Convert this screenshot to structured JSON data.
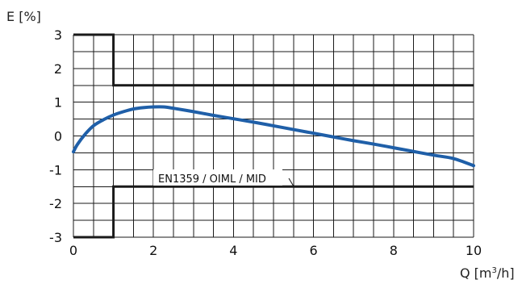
{
  "chart_data": {
    "type": "line",
    "ylabel": "E [%]",
    "xlabel_main": "Q [m",
    "xlabel_sup": "3",
    "xlabel_end": "/h]",
    "xlim": [
      0,
      10
    ],
    "ylim": [
      -3,
      3
    ],
    "grid": true,
    "x_ticks": [
      "0",
      "2",
      "4",
      "6",
      "8",
      "10"
    ],
    "y_ticks": [
      "3",
      "2",
      "1",
      "0",
      "-1",
      "-2",
      "-3"
    ],
    "annotation": "EN1359 / OIML / MID",
    "colors": {
      "curve": "#1f5fa8",
      "limits": "#1a1a1a",
      "grid": "#1a1a1a"
    },
    "series": [
      {
        "x": [
          0,
          0.1,
          0.3,
          0.5,
          0.75,
          1.0,
          1.25,
          1.5,
          1.75,
          2.0,
          2.25,
          2.5,
          3,
          3.5,
          4,
          4.5,
          5,
          5.5,
          6,
          6.5,
          7,
          7.5,
          8,
          8.5,
          9,
          9.5,
          10
        ],
        "values": [
          -0.47,
          -0.25,
          0.06,
          0.3,
          0.48,
          0.62,
          0.72,
          0.8,
          0.84,
          0.86,
          0.86,
          0.82,
          0.72,
          0.61,
          0.51,
          0.41,
          0.3,
          0.19,
          0.08,
          -0.03,
          -0.14,
          -0.24,
          -0.35,
          -0.46,
          -0.57,
          -0.67,
          -0.88
        ]
      }
    ],
    "limits": [
      {
        "x": [
          0,
          1,
          1,
          10
        ],
        "values": [
          3,
          3,
          1.5,
          1.5
        ]
      },
      {
        "x": [
          0,
          1,
          1,
          10
        ],
        "values": [
          -3,
          -3,
          -1.5,
          -1.5
        ]
      }
    ]
  }
}
